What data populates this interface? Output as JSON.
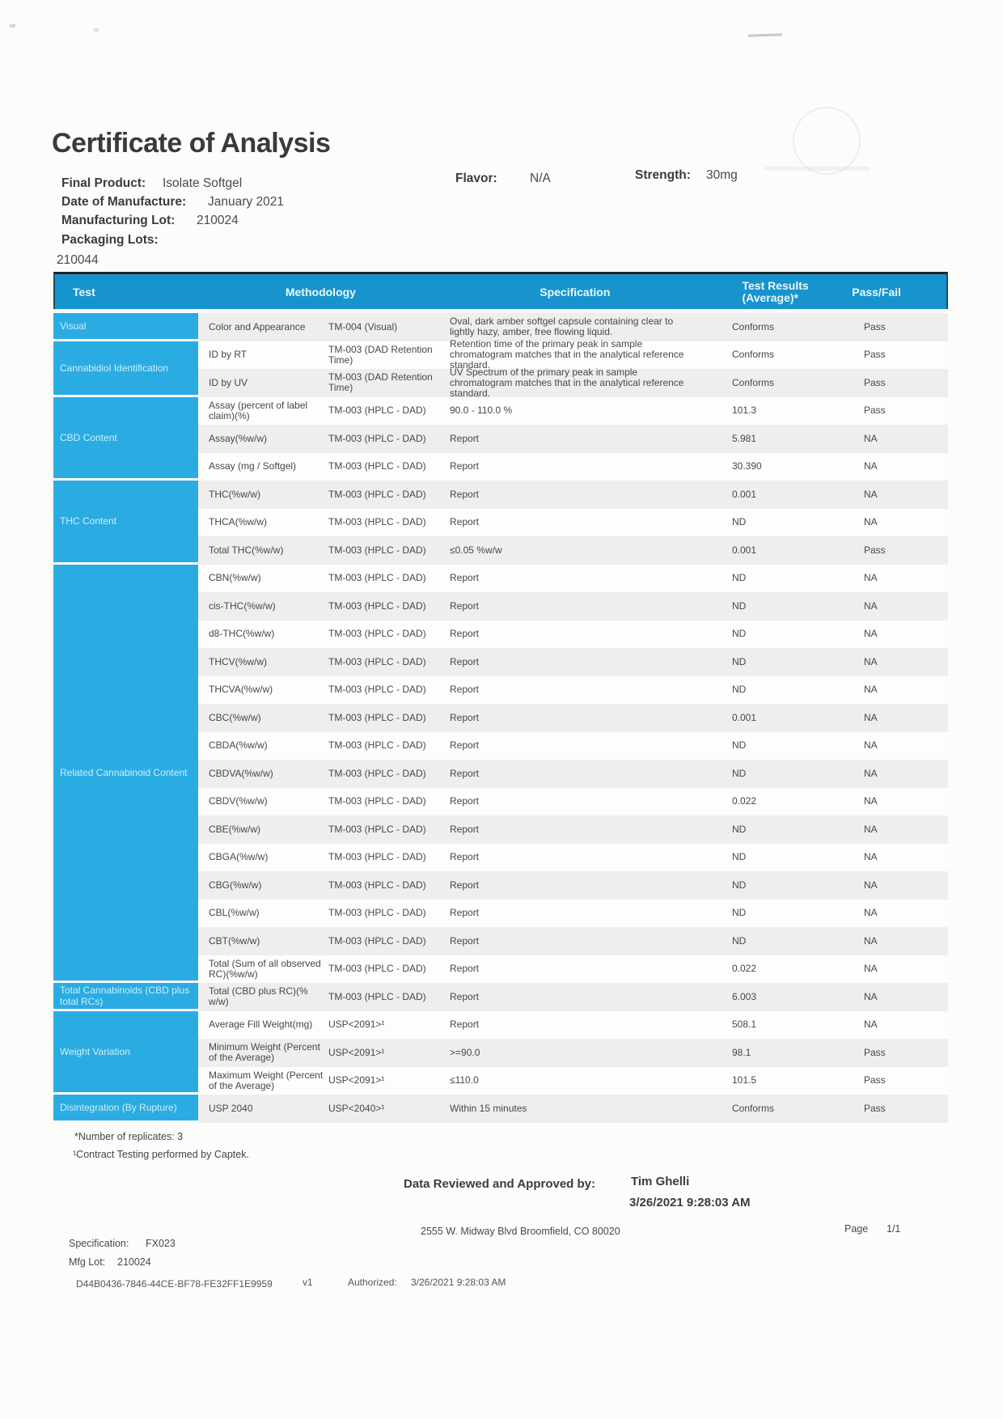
{
  "title": "Certificate of Analysis",
  "product_info": {
    "final_product_label": "Final Product:",
    "final_product_value": "Isolate Softgel",
    "flavor_label": "Flavor:",
    "flavor_value": "N/A",
    "strength_label": "Strength:",
    "strength_value": "30mg",
    "date_of_manufacture_label": "Date of Manufacture:",
    "date_of_manufacture_value": "January 2021",
    "manufacturing_lot_label": "Manufacturing Lot:",
    "manufacturing_lot_value": "210024",
    "packaging_lots_label": "Packaging Lots:",
    "packaging_lots_value": "210044"
  },
  "table": {
    "headers": {
      "test": "Test",
      "methodology": "Methodology",
      "specification": "Specification",
      "results": "Test Results (Average)*",
      "passfail": "Pass/Fail"
    },
    "sections": [
      {
        "label": "Visual",
        "rows": [
          {
            "name": "Color and Appearance",
            "meth": "TM-004 (Visual)",
            "spec": "Oval, dark amber softgel capsule containing clear to lightly hazy, amber, free flowing liquid.",
            "result": "Conforms",
            "pf": "Pass"
          }
        ]
      },
      {
        "label": "Cannabidiol Identification",
        "rows": [
          {
            "name": "ID by RT",
            "meth": "TM-003 (DAD Retention Time)",
            "spec": "Retention time of the primary peak in sample chromatogram matches that in the analytical reference standard.",
            "result": "Conforms",
            "pf": "Pass"
          },
          {
            "name": "ID by UV",
            "meth": "TM-003 (DAD Retention Time)",
            "spec": "UV Spectrum of the primary peak in sample chromatogram matches that in the analytical reference standard.",
            "result": "Conforms",
            "pf": "Pass"
          }
        ]
      },
      {
        "label": "CBD Content",
        "rows": [
          {
            "name": "Assay (percent of label claim)(%)",
            "meth": "TM-003 (HPLC - DAD)",
            "spec": "90.0 - 110.0 %",
            "result": "101.3",
            "pf": "Pass"
          },
          {
            "name": "Assay(%w/w)",
            "meth": "TM-003 (HPLC - DAD)",
            "spec": "Report",
            "result": "5.981",
            "pf": "NA"
          },
          {
            "name": "Assay (mg / Softgel)",
            "meth": "TM-003 (HPLC - DAD)",
            "spec": "Report",
            "result": "30.390",
            "pf": "NA"
          }
        ]
      },
      {
        "label": "THC Content",
        "rows": [
          {
            "name": "THC(%w/w)",
            "meth": "TM-003 (HPLC - DAD)",
            "spec": "Report",
            "result": "0.001",
            "pf": "NA"
          },
          {
            "name": "THCA(%w/w)",
            "meth": "TM-003 (HPLC - DAD)",
            "spec": "Report",
            "result": "ND",
            "pf": "NA"
          },
          {
            "name": "Total THC(%w/w)",
            "meth": "TM-003 (HPLC - DAD)",
            "spec": "≤0.05 %w/w",
            "result": "0.001",
            "pf": "Pass"
          }
        ]
      },
      {
        "label": "Related Cannabinoid Content",
        "rows": [
          {
            "name": "CBN(%w/w)",
            "meth": "TM-003 (HPLC - DAD)",
            "spec": "Report",
            "result": "ND",
            "pf": "NA"
          },
          {
            "name": "cis-THC(%w/w)",
            "meth": "TM-003 (HPLC - DAD)",
            "spec": "Report",
            "result": "ND",
            "pf": "NA"
          },
          {
            "name": "d8-THC(%w/w)",
            "meth": "TM-003 (HPLC - DAD)",
            "spec": "Report",
            "result": "ND",
            "pf": "NA"
          },
          {
            "name": "THCV(%w/w)",
            "meth": "TM-003 (HPLC - DAD)",
            "spec": "Report",
            "result": "ND",
            "pf": "NA"
          },
          {
            "name": "THCVA(%w/w)",
            "meth": "TM-003 (HPLC - DAD)",
            "spec": "Report",
            "result": "ND",
            "pf": "NA"
          },
          {
            "name": "CBC(%w/w)",
            "meth": "TM-003 (HPLC - DAD)",
            "spec": "Report",
            "result": "0.001",
            "pf": "NA"
          },
          {
            "name": "CBDA(%w/w)",
            "meth": "TM-003 (HPLC - DAD)",
            "spec": "Report",
            "result": "ND",
            "pf": "NA"
          },
          {
            "name": "CBDVA(%w/w)",
            "meth": "TM-003 (HPLC - DAD)",
            "spec": "Report",
            "result": "ND",
            "pf": "NA"
          },
          {
            "name": "CBDV(%w/w)",
            "meth": "TM-003 (HPLC - DAD)",
            "spec": "Report",
            "result": "0.022",
            "pf": "NA"
          },
          {
            "name": "CBE(%w/w)",
            "meth": "TM-003 (HPLC - DAD)",
            "spec": "Report",
            "result": "ND",
            "pf": "NA"
          },
          {
            "name": "CBGA(%w/w)",
            "meth": "TM-003 (HPLC - DAD)",
            "spec": "Report",
            "result": "ND",
            "pf": "NA"
          },
          {
            "name": "CBG(%w/w)",
            "meth": "TM-003 (HPLC - DAD)",
            "spec": "Report",
            "result": "ND",
            "pf": "NA"
          },
          {
            "name": "CBL(%w/w)",
            "meth": "TM-003 (HPLC - DAD)",
            "spec": "Report",
            "result": "ND",
            "pf": "NA"
          },
          {
            "name": "CBT(%w/w)",
            "meth": "TM-003 (HPLC - DAD)",
            "spec": "Report",
            "result": "ND",
            "pf": "NA"
          },
          {
            "name": "Total (Sum of all observed RC)(%w/w)",
            "meth": "TM-003 (HPLC - DAD)",
            "spec": "Report",
            "result": "0.022",
            "pf": "NA"
          }
        ]
      },
      {
        "label": "Total Cannabinoids (CBD plus total RCs)",
        "rows": [
          {
            "name": "Total (CBD plus RC)(% w/w)",
            "meth": "TM-003 (HPLC - DAD)",
            "spec": "Report",
            "result": "6.003",
            "pf": "NA"
          }
        ]
      },
      {
        "label": "Weight Variation",
        "rows": [
          {
            "name": "Average Fill Weight(mg)",
            "meth": "USP<2091>¹",
            "spec": "Report",
            "result": "508.1",
            "pf": "NA"
          },
          {
            "name": "Minimum Weight (Percent of the Average)",
            "meth": "USP<2091>¹",
            "spec": ">=90.0",
            "result": "98.1",
            "pf": "Pass"
          },
          {
            "name": "Maximum Weight (Percent of the Average)",
            "meth": "USP<2091>¹",
            "spec": "≤110.0",
            "result": "101.5",
            "pf": "Pass"
          }
        ]
      },
      {
        "label": "Disintegration (By Rupture)",
        "rows": [
          {
            "name": "USP 2040",
            "meth": "USP<2040>¹",
            "spec": "Within 15 minutes",
            "result": "Conforms",
            "pf": "Pass"
          }
        ]
      }
    ]
  },
  "footnotes": {
    "replicates": "*Number of replicates: 3",
    "contract": "¹Contract Testing performed by Captek."
  },
  "approval": {
    "label": "Data Reviewed and Approved by:",
    "name": "Tim Ghelli",
    "datetime": "3/26/2021 9:28:03 AM"
  },
  "footer": {
    "address": "2555 W. Midway Blvd Broomfield, CO 80020",
    "page_label": "Page",
    "page_value": "1/1",
    "specification_label": "Specification:",
    "specification_value": "FX023",
    "mfg_lot_label": "Mfg Lot:",
    "mfg_lot_value": "210024",
    "doc_id": "D44B0436-7846-44CE-BF78-FE32FF1E9959",
    "version": "v1",
    "authorized_label": "Authorized:",
    "authorized_value": "3/26/2021 9:28:03 AM"
  },
  "colors": {
    "header_blue": "#1794ce",
    "section_cyan": "#2aace3",
    "stripe_gray": "#f0eeec"
  }
}
